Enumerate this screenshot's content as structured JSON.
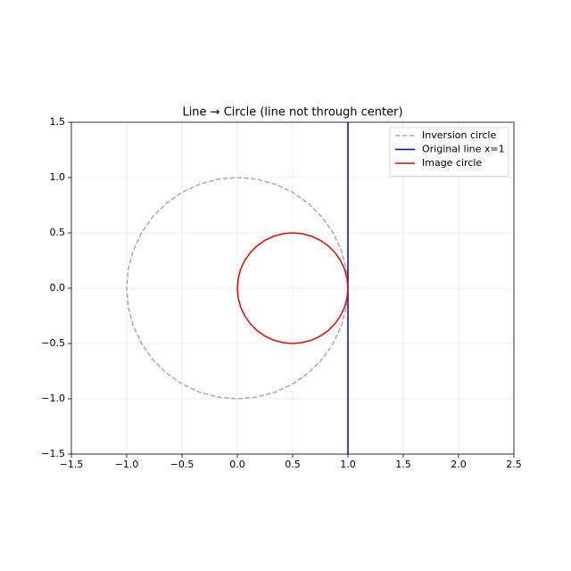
{
  "chart_data": {
    "type": "line",
    "title": "Line → Circle (line not through center)",
    "xlim": [
      -1.5,
      2.5
    ],
    "ylim": [
      -1.5,
      1.5
    ],
    "xticks": [
      {
        "value": -1.5,
        "label": "−1.5"
      },
      {
        "value": -1.0,
        "label": "−1.0"
      },
      {
        "value": -0.5,
        "label": "−0.5"
      },
      {
        "value": 0,
        "label": "0.0"
      },
      0.5,
      {
        "value": 1,
        "label": "1.0"
      },
      1.5,
      {
        "value": 2,
        "label": "2.0"
      },
      2.5
    ],
    "yticks": [
      {
        "value": -1.5,
        "label": "−1.5"
      },
      {
        "value": -1.0,
        "label": "−1.0"
      },
      {
        "value": -0.5,
        "label": "−0.5"
      },
      {
        "value": 0,
        "label": "0.0"
      },
      0.5,
      {
        "value": 1,
        "label": "1.0"
      },
      1.5
    ],
    "grid": true,
    "legend": "upper right",
    "series": [
      {
        "name": "Inversion circle",
        "color": "#aaaaaa",
        "linestyle": "dashed",
        "x": [
          1,
          0.985,
          0.94,
          0.866,
          0.766,
          0.643,
          0.5,
          0.342,
          0.174,
          0,
          -0.174,
          -0.342,
          -0.5,
          -0.643,
          -0.766,
          -0.866,
          -0.94,
          -0.985,
          -1,
          -0.985,
          -0.94,
          -0.866,
          -0.766,
          -0.643,
          -0.5,
          -0.342,
          -0.174,
          0,
          0.174,
          0.342,
          0.5,
          0.643,
          0.766,
          0.866,
          0.94,
          0.985,
          1
        ],
        "values": [
          0,
          0.174,
          0.342,
          0.5,
          0.643,
          0.766,
          0.866,
          0.94,
          0.985,
          1,
          0.985,
          0.94,
          0.866,
          0.766,
          0.643,
          0.5,
          0.342,
          0.174,
          0,
          -0.174,
          -0.342,
          -0.5,
          -0.643,
          -0.766,
          -0.866,
          -0.94,
          -0.985,
          -1,
          -0.985,
          -0.94,
          -0.866,
          -0.766,
          -0.643,
          -0.5,
          -0.342,
          -0.174,
          0
        ]
      },
      {
        "name": "Original line x=1",
        "color": "#0000cc",
        "linestyle": "solid",
        "x": [
          1,
          1
        ],
        "values": [
          -1.5,
          1.5
        ]
      },
      {
        "name": "Image circle",
        "color": "#ee0000",
        "linestyle": "solid",
        "x": [
          1,
          0.992,
          0.97,
          0.933,
          0.883,
          0.821,
          0.75,
          0.671,
          0.587,
          0.5,
          0.413,
          0.329,
          0.25,
          0.179,
          0.117,
          0.067,
          0.03,
          0.008,
          0,
          0.008,
          0.03,
          0.067,
          0.117,
          0.179,
          0.25,
          0.329,
          0.413,
          0.5,
          0.587,
          0.671,
          0.75,
          0.821,
          0.883,
          0.933,
          0.97,
          0.992,
          1
        ],
        "values": [
          0,
          0.087,
          0.171,
          0.25,
          0.321,
          0.383,
          0.433,
          0.47,
          0.492,
          0.5,
          0.492,
          0.47,
          0.433,
          0.383,
          0.321,
          0.25,
          0.171,
          0.087,
          0,
          -0.087,
          -0.171,
          -0.25,
          -0.321,
          -0.383,
          -0.433,
          -0.47,
          -0.492,
          -0.5,
          -0.492,
          -0.47,
          -0.433,
          -0.383,
          -0.321,
          -0.25,
          -0.171,
          -0.087,
          0
        ]
      }
    ]
  }
}
